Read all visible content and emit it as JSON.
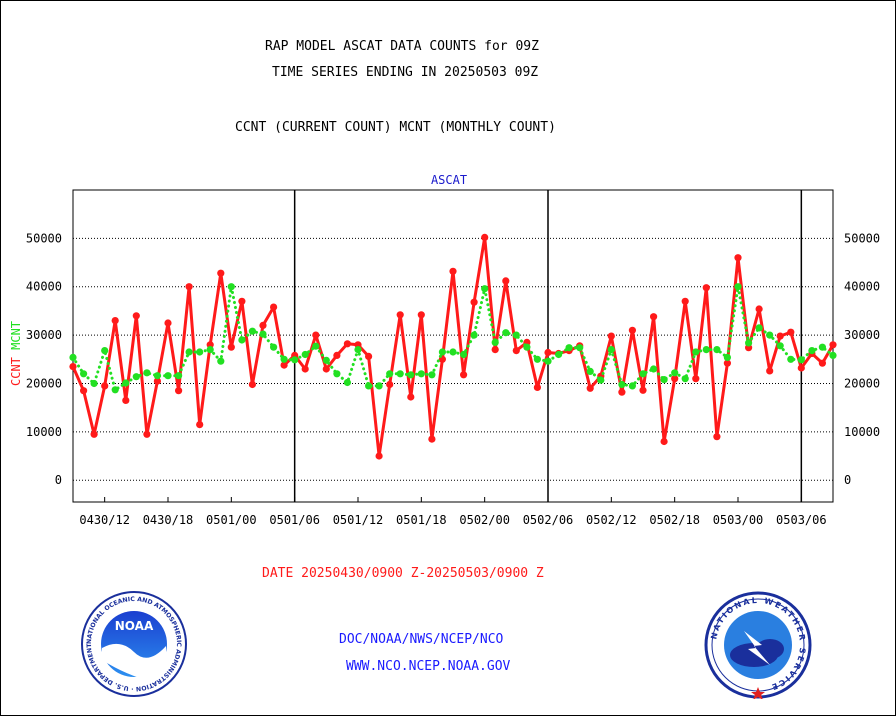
{
  "titles": {
    "line1": "RAP MODEL ASCAT DATA COUNTS for 09Z",
    "line2": "TIME SERIES ENDING IN 20250503 09Z",
    "line3": "CCNT (CURRENT COUNT) MCNT (MONTHLY COUNT)"
  },
  "footer": {
    "date_range": "DATE 20250430/0900 Z-20250503/0900 Z",
    "org_path": "DOC/NOAA/NWS/NCEP/NCO",
    "website": "WWW.NCO.NCEP.NOAA.GOV"
  },
  "logos": {
    "noaa_text": "NOAA",
    "noaa_ring": "NATIONAL OCEANIC AND ATMOSPHERIC ADMINISTRATION · U.S. DEPARTMENT OF COMMERCE ·",
    "nws_ring": "NATIONAL WEATHER SERVICE"
  },
  "colors": {
    "ccnt": "#ff1a1a",
    "mcnt": "#22e022",
    "panel_title": "#1a1acc",
    "footer_text": "#1a1aff",
    "date_text": "#ff1a1a"
  },
  "chart_data": {
    "type": "line",
    "title": "ASCAT",
    "ylabel_left_parts": [
      "CCNT",
      "MCNT"
    ],
    "yticks": [
      0,
      10000,
      20000,
      30000,
      40000,
      50000
    ],
    "ylim": [
      -4500,
      60000
    ],
    "x_unit": "hours since 0430/09Z",
    "xlim": [
      0,
      72
    ],
    "xticks": [
      {
        "h": 3,
        "label": "0430/12"
      },
      {
        "h": 9,
        "label": "0430/18"
      },
      {
        "h": 15,
        "label": "0501/00"
      },
      {
        "h": 21,
        "label": "0501/06"
      },
      {
        "h": 27,
        "label": "0501/12"
      },
      {
        "h": 33,
        "label": "0501/18"
      },
      {
        "h": 39,
        "label": "0502/00"
      },
      {
        "h": 45,
        "label": "0502/06"
      },
      {
        "h": 51,
        "label": "0502/12"
      },
      {
        "h": 57,
        "label": "0502/18"
      },
      {
        "h": 63,
        "label": "0503/00"
      },
      {
        "h": 69,
        "label": "0503/06"
      }
    ],
    "day_boundaries_h": [
      21,
      45,
      69
    ],
    "gridlines": "horizontal dotted",
    "series": [
      {
        "name": "CCNT",
        "color": "#ff1a1a",
        "style": "solid",
        "values": [
          23500,
          18500,
          9500,
          19500,
          33000,
          16500,
          34000,
          9500,
          20500,
          32500,
          18500,
          40000,
          11500,
          28000,
          42800,
          27500,
          37000,
          19800,
          32000,
          35800,
          23800,
          25800,
          23000,
          30000,
          23000,
          25800,
          28200,
          28000,
          25600,
          5000,
          19800,
          34200,
          17200,
          34200,
          8500,
          25000,
          43200,
          21800,
          36800,
          50200,
          27000,
          41200,
          26800,
          28500,
          19200,
          26400,
          26200,
          26800,
          27800,
          19000,
          21500,
          29800,
          18200,
          31000,
          18600,
          33800,
          8000,
          21000,
          37000,
          21000,
          39800,
          9000,
          24200,
          46000,
          27400,
          35400,
          22600,
          29800,
          30600,
          23200,
          26200,
          24200,
          28000
        ]
      },
      {
        "name": "MCNT",
        "color": "#22e022",
        "style": "dotted",
        "values": [
          25400,
          22000,
          20000,
          26800,
          18700,
          20100,
          21400,
          22200,
          21600,
          21600,
          21600,
          26500,
          26500,
          27000,
          24600,
          40000,
          29000,
          30800,
          30200,
          27500,
          25000,
          24900,
          26000,
          27700,
          24800,
          22000,
          20200,
          27000,
          19500,
          19500,
          22000,
          22000,
          21800,
          22000,
          21800,
          26500,
          26500,
          26000,
          30000,
          39600,
          28500,
          30500,
          30000,
          27500,
          25000,
          24600,
          26000,
          27400,
          27400,
          22500,
          20700,
          27000,
          19800,
          19500,
          22000,
          23000,
          20800,
          22200,
          21000,
          26500,
          27000,
          27000,
          25400,
          40000,
          28400,
          31500,
          30000,
          27800,
          25000,
          24900,
          26800,
          27500,
          25800
        ]
      }
    ]
  }
}
